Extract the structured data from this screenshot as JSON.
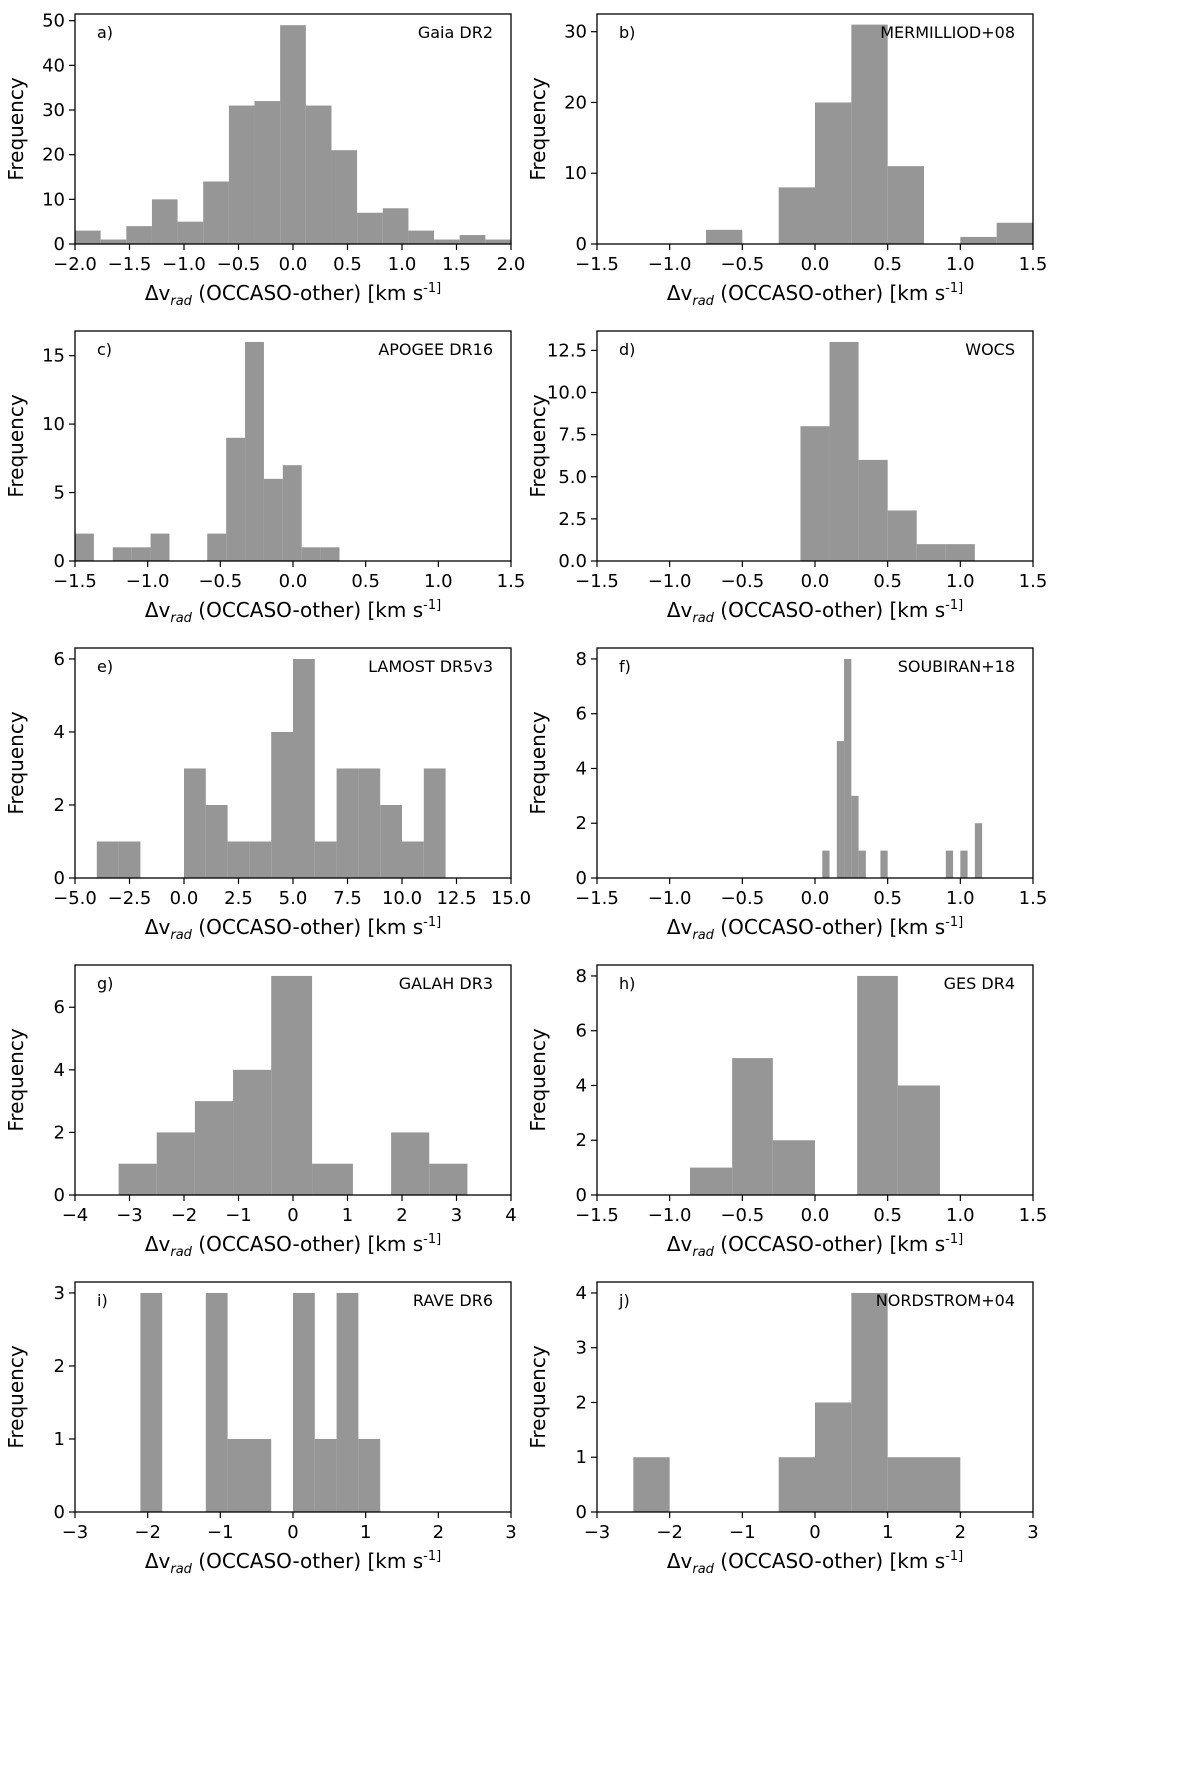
{
  "figure": {
    "bar_color": "#969696",
    "axis_color": "#000000"
  },
  "chart_data": [
    {
      "id": "a",
      "type": "bar",
      "panel_label": "a)",
      "catalog": "Gaia DR2",
      "xlabel": "Δv_rad (OCCASO-other) [km s^-1]",
      "ylabel": "Frequency",
      "xlim": [
        -2.0,
        2.0
      ],
      "ylim": [
        0,
        51.5
      ],
      "xticks": [
        -2.0,
        -1.5,
        -1.0,
        -0.5,
        0.0,
        0.5,
        1.0,
        1.5,
        2.0
      ],
      "xtick_labels": [
        "−2.0",
        "−1.5",
        "−1.0",
        "−0.5",
        "0.0",
        "0.5",
        "1.0",
        "1.5",
        "2.0"
      ],
      "yticks": [
        0,
        10,
        20,
        30,
        40,
        50
      ],
      "ytick_labels": [
        "0",
        "10",
        "20",
        "30",
        "40",
        "50"
      ],
      "bins": [
        {
          "x0": -2.0,
          "x1": -1.765,
          "count": 3
        },
        {
          "x0": -1.765,
          "x1": -1.529,
          "count": 1
        },
        {
          "x0": -1.529,
          "x1": -1.294,
          "count": 4
        },
        {
          "x0": -1.294,
          "x1": -1.059,
          "count": 10
        },
        {
          "x0": -1.059,
          "x1": -0.824,
          "count": 5
        },
        {
          "x0": -0.824,
          "x1": -0.588,
          "count": 14
        },
        {
          "x0": -0.588,
          "x1": -0.353,
          "count": 31
        },
        {
          "x0": -0.353,
          "x1": -0.118,
          "count": 32
        },
        {
          "x0": -0.118,
          "x1": 0.118,
          "count": 49
        },
        {
          "x0": 0.118,
          "x1": 0.353,
          "count": 31
        },
        {
          "x0": 0.353,
          "x1": 0.588,
          "count": 21
        },
        {
          "x0": 0.588,
          "x1": 0.824,
          "count": 7
        },
        {
          "x0": 0.824,
          "x1": 1.059,
          "count": 8
        },
        {
          "x0": 1.059,
          "x1": 1.294,
          "count": 3
        },
        {
          "x0": 1.294,
          "x1": 1.529,
          "count": 1
        },
        {
          "x0": 1.529,
          "x1": 1.765,
          "count": 2
        },
        {
          "x0": 1.765,
          "x1": 2.0,
          "count": 1
        }
      ]
    },
    {
      "id": "b",
      "type": "bar",
      "panel_label": "b)",
      "catalog": "MERMILLIOD+08",
      "xlabel": "Δv_rad (OCCASO-other) [km s^-1]",
      "ylabel": "Frequency",
      "xlim": [
        -1.5,
        1.5
      ],
      "ylim": [
        0,
        32.5
      ],
      "xticks": [
        -1.5,
        -1.0,
        -0.5,
        0.0,
        0.5,
        1.0,
        1.5
      ],
      "xtick_labels": [
        "−1.5",
        "−1.0",
        "−0.5",
        "0.0",
        "0.5",
        "1.0",
        "1.5"
      ],
      "yticks": [
        0,
        10,
        20,
        30
      ],
      "ytick_labels": [
        "0",
        "10",
        "20",
        "30"
      ],
      "bins": [
        {
          "x0": -0.75,
          "x1": -0.5,
          "count": 2
        },
        {
          "x0": -0.25,
          "x1": 0.0,
          "count": 8
        },
        {
          "x0": 0.0,
          "x1": 0.25,
          "count": 20
        },
        {
          "x0": 0.25,
          "x1": 0.5,
          "count": 31
        },
        {
          "x0": 0.5,
          "x1": 0.75,
          "count": 11
        },
        {
          "x0": 1.0,
          "x1": 1.25,
          "count": 1
        },
        {
          "x0": 1.25,
          "x1": 1.5,
          "count": 3
        }
      ]
    },
    {
      "id": "c",
      "type": "bar",
      "panel_label": "c)",
      "catalog": "APOGEE DR16",
      "xlabel": "Δv_rad (OCCASO-other) [km s^-1]",
      "ylabel": "Frequency",
      "xlim": [
        -1.5,
        1.5
      ],
      "ylim": [
        0,
        16.8
      ],
      "xticks": [
        -1.5,
        -1.0,
        -0.5,
        0.0,
        0.5,
        1.0,
        1.5
      ],
      "xtick_labels": [
        "−1.5",
        "−1.0",
        "−0.5",
        "0.0",
        "0.5",
        "1.0",
        "1.5"
      ],
      "yticks": [
        0,
        5,
        10,
        15
      ],
      "ytick_labels": [
        "0",
        "5",
        "10",
        "15"
      ],
      "bins": [
        {
          "x0": -1.5,
          "x1": -1.37,
          "count": 2
        },
        {
          "x0": -1.24,
          "x1": -1.11,
          "count": 1
        },
        {
          "x0": -1.11,
          "x1": -0.98,
          "count": 1
        },
        {
          "x0": -0.98,
          "x1": -0.85,
          "count": 2
        },
        {
          "x0": -0.59,
          "x1": -0.46,
          "count": 2
        },
        {
          "x0": -0.46,
          "x1": -0.33,
          "count": 9
        },
        {
          "x0": -0.33,
          "x1": -0.2,
          "count": 16
        },
        {
          "x0": -0.2,
          "x1": -0.07,
          "count": 6
        },
        {
          "x0": -0.07,
          "x1": 0.06,
          "count": 7
        },
        {
          "x0": 0.06,
          "x1": 0.19,
          "count": 1
        },
        {
          "x0": 0.19,
          "x1": 0.32,
          "count": 1
        }
      ]
    },
    {
      "id": "d",
      "type": "bar",
      "panel_label": "d)",
      "catalog": "WOCS",
      "xlabel": "Δv_rad (OCCASO-other) [km s^-1]",
      "ylabel": "Frequency",
      "xlim": [
        -1.5,
        1.5
      ],
      "ylim": [
        0,
        13.65
      ],
      "xticks": [
        -1.5,
        -1.0,
        -0.5,
        0.0,
        0.5,
        1.0,
        1.5
      ],
      "xtick_labels": [
        "−1.5",
        "−1.0",
        "−0.5",
        "0.0",
        "0.5",
        "1.0",
        "1.5"
      ],
      "yticks": [
        0,
        2.5,
        5.0,
        7.5,
        10.0,
        12.5
      ],
      "ytick_labels": [
        "0.0",
        "2.5",
        "5.0",
        "7.5",
        "10.0",
        "12.5"
      ],
      "bins": [
        {
          "x0": -0.1,
          "x1": 0.1,
          "count": 8
        },
        {
          "x0": 0.1,
          "x1": 0.3,
          "count": 13
        },
        {
          "x0": 0.3,
          "x1": 0.5,
          "count": 6
        },
        {
          "x0": 0.5,
          "x1": 0.7,
          "count": 3
        },
        {
          "x0": 0.7,
          "x1": 0.9,
          "count": 1
        },
        {
          "x0": 0.9,
          "x1": 1.1,
          "count": 1
        }
      ]
    },
    {
      "id": "e",
      "type": "bar",
      "panel_label": "e)",
      "catalog": "LAMOST DR5v3",
      "xlabel": "Δv_rad (OCCASO-other) [km s^-1]",
      "ylabel": "Frequency",
      "xlim": [
        -5.0,
        15.0
      ],
      "ylim": [
        0,
        6.3
      ],
      "xticks": [
        -5.0,
        -2.5,
        0.0,
        2.5,
        5.0,
        7.5,
        10.0,
        12.5,
        15.0
      ],
      "xtick_labels": [
        "−5.0",
        "−2.5",
        "0.0",
        "2.5",
        "5.0",
        "7.5",
        "10.0",
        "12.5",
        "15.0"
      ],
      "yticks": [
        0,
        2,
        4,
        6
      ],
      "ytick_labels": [
        "0",
        "2",
        "4",
        "6"
      ],
      "bins": [
        {
          "x0": -4.0,
          "x1": -3.0,
          "count": 1
        },
        {
          "x0": -3.0,
          "x1": -2.0,
          "count": 1
        },
        {
          "x0": 0.0,
          "x1": 1.0,
          "count": 3
        },
        {
          "x0": 1.0,
          "x1": 2.0,
          "count": 2
        },
        {
          "x0": 2.0,
          "x1": 3.0,
          "count": 1
        },
        {
          "x0": 3.0,
          "x1": 4.0,
          "count": 1
        },
        {
          "x0": 4.0,
          "x1": 5.0,
          "count": 4
        },
        {
          "x0": 5.0,
          "x1": 6.0,
          "count": 6
        },
        {
          "x0": 6.0,
          "x1": 7.0,
          "count": 1
        },
        {
          "x0": 7.0,
          "x1": 8.0,
          "count": 3
        },
        {
          "x0": 8.0,
          "x1": 9.0,
          "count": 3
        },
        {
          "x0": 9.0,
          "x1": 10.0,
          "count": 2
        },
        {
          "x0": 10.0,
          "x1": 11.0,
          "count": 1
        },
        {
          "x0": 11.0,
          "x1": 12.0,
          "count": 3
        }
      ]
    },
    {
      "id": "f",
      "type": "bar",
      "panel_label": "f)",
      "catalog": "SOUBIRAN+18",
      "xlabel": "Δv_rad (OCCASO-other) [km s^-1]",
      "ylabel": "Frequency",
      "xlim": [
        -1.5,
        1.5
      ],
      "ylim": [
        0,
        8.4
      ],
      "xticks": [
        -1.5,
        -1.0,
        -0.5,
        0.0,
        0.5,
        1.0,
        1.5
      ],
      "xtick_labels": [
        "−1.5",
        "−1.0",
        "−0.5",
        "0.0",
        "0.5",
        "1.0",
        "1.5"
      ],
      "yticks": [
        0,
        2,
        4,
        6,
        8
      ],
      "ytick_labels": [
        "0",
        "2",
        "4",
        "6",
        "8"
      ],
      "bins": [
        {
          "x0": 0.05,
          "x1": 0.1,
          "count": 1
        },
        {
          "x0": 0.15,
          "x1": 0.2,
          "count": 5
        },
        {
          "x0": 0.2,
          "x1": 0.25,
          "count": 8
        },
        {
          "x0": 0.25,
          "x1": 0.3,
          "count": 3
        },
        {
          "x0": 0.3,
          "x1": 0.35,
          "count": 1
        },
        {
          "x0": 0.45,
          "x1": 0.5,
          "count": 1
        },
        {
          "x0": 0.9,
          "x1": 0.95,
          "count": 1
        },
        {
          "x0": 1.0,
          "x1": 1.05,
          "count": 1
        },
        {
          "x0": 1.1,
          "x1": 1.15,
          "count": 2
        }
      ]
    },
    {
      "id": "g",
      "type": "bar",
      "panel_label": "g)",
      "catalog": "GALAH DR3",
      "xlabel": "Δv_rad (OCCASO-other) [km s^-1]",
      "ylabel": "Frequency",
      "xlim": [
        -4,
        4
      ],
      "ylim": [
        0,
        7.35
      ],
      "xticks": [
        -4,
        -3,
        -2,
        -1,
        0,
        1,
        2,
        3,
        4
      ],
      "xtick_labels": [
        "−4",
        "−3",
        "−2",
        "−1",
        "0",
        "1",
        "2",
        "3",
        "4"
      ],
      "yticks": [
        0,
        2,
        4,
        6
      ],
      "ytick_labels": [
        "0",
        "2",
        "4",
        "6"
      ],
      "bins": [
        {
          "x0": -3.2,
          "x1": -2.5,
          "count": 1
        },
        {
          "x0": -2.5,
          "x1": -1.8,
          "count": 2
        },
        {
          "x0": -1.8,
          "x1": -1.1,
          "count": 3
        },
        {
          "x0": -1.1,
          "x1": -0.4,
          "count": 4
        },
        {
          "x0": -0.4,
          "x1": 0.35,
          "count": 7
        },
        {
          "x0": 0.35,
          "x1": 1.1,
          "count": 1
        },
        {
          "x0": 1.8,
          "x1": 2.5,
          "count": 2
        },
        {
          "x0": 2.5,
          "x1": 3.2,
          "count": 1
        }
      ]
    },
    {
      "id": "h",
      "type": "bar",
      "panel_label": "h)",
      "catalog": "GES DR4",
      "xlabel": "Δv_rad (OCCASO-other) [km s^-1]",
      "ylabel": "Frequency",
      "xlim": [
        -1.5,
        1.5
      ],
      "ylim": [
        0,
        8.4
      ],
      "xticks": [
        -1.5,
        -1.0,
        -0.5,
        0.0,
        0.5,
        1.0,
        1.5
      ],
      "xtick_labels": [
        "−1.5",
        "−1.0",
        "−0.5",
        "0.0",
        "0.5",
        "1.0",
        "1.5"
      ],
      "yticks": [
        0,
        2,
        4,
        6,
        8
      ],
      "ytick_labels": [
        "0",
        "2",
        "4",
        "6",
        "8"
      ],
      "bins": [
        {
          "x0": -0.86,
          "x1": -0.57,
          "count": 1
        },
        {
          "x0": -0.57,
          "x1": -0.29,
          "count": 5
        },
        {
          "x0": -0.29,
          "x1": 0.0,
          "count": 2
        },
        {
          "x0": 0.29,
          "x1": 0.57,
          "count": 8
        },
        {
          "x0": 0.57,
          "x1": 0.86,
          "count": 4
        }
      ]
    },
    {
      "id": "i",
      "type": "bar",
      "panel_label": "i)",
      "catalog": "RAVE DR6",
      "xlabel": "Δv_rad (OCCASO-other) [km s^-1]",
      "ylabel": "Frequency",
      "xlim": [
        -3,
        3
      ],
      "ylim": [
        0,
        3.15
      ],
      "xticks": [
        -3,
        -2,
        -1,
        0,
        1,
        2,
        3
      ],
      "xtick_labels": [
        "−3",
        "−2",
        "−1",
        "0",
        "1",
        "2",
        "3"
      ],
      "yticks": [
        0,
        1,
        2,
        3
      ],
      "ytick_labels": [
        "0",
        "1",
        "2",
        "3"
      ],
      "bins": [
        {
          "x0": -2.1,
          "x1": -1.8,
          "count": 3
        },
        {
          "x0": -1.2,
          "x1": -0.9,
          "count": 3
        },
        {
          "x0": -0.9,
          "x1": -0.3,
          "count": 1
        },
        {
          "x0": 0.0,
          "x1": 0.3,
          "count": 3
        },
        {
          "x0": 0.3,
          "x1": 0.6,
          "count": 1
        },
        {
          "x0": 0.6,
          "x1": 0.9,
          "count": 3
        },
        {
          "x0": 0.9,
          "x1": 1.2,
          "count": 1
        }
      ]
    },
    {
      "id": "j",
      "type": "bar",
      "panel_label": "j)",
      "catalog": "NORDSTROM+04",
      "xlabel": "Δv_rad (OCCASO-other) [km s^-1]",
      "ylabel": "Frequency",
      "xlim": [
        -3,
        3
      ],
      "ylim": [
        0,
        4.2
      ],
      "xticks": [
        -3,
        -2,
        -1,
        0,
        1,
        2,
        3
      ],
      "xtick_labels": [
        "−3",
        "−2",
        "−1",
        "0",
        "1",
        "2",
        "3"
      ],
      "yticks": [
        0,
        1,
        2,
        3,
        4
      ],
      "ytick_labels": [
        "0",
        "1",
        "2",
        "3",
        "4"
      ],
      "bins": [
        {
          "x0": -2.5,
          "x1": -2.0,
          "count": 1
        },
        {
          "x0": -0.5,
          "x1": 0.0,
          "count": 1
        },
        {
          "x0": 0.0,
          "x1": 0.5,
          "count": 2
        },
        {
          "x0": 0.5,
          "x1": 1.0,
          "count": 4
        },
        {
          "x0": 1.0,
          "x1": 1.5,
          "count": 1
        },
        {
          "x0": 1.5,
          "x1": 2.0,
          "count": 1
        }
      ]
    }
  ]
}
